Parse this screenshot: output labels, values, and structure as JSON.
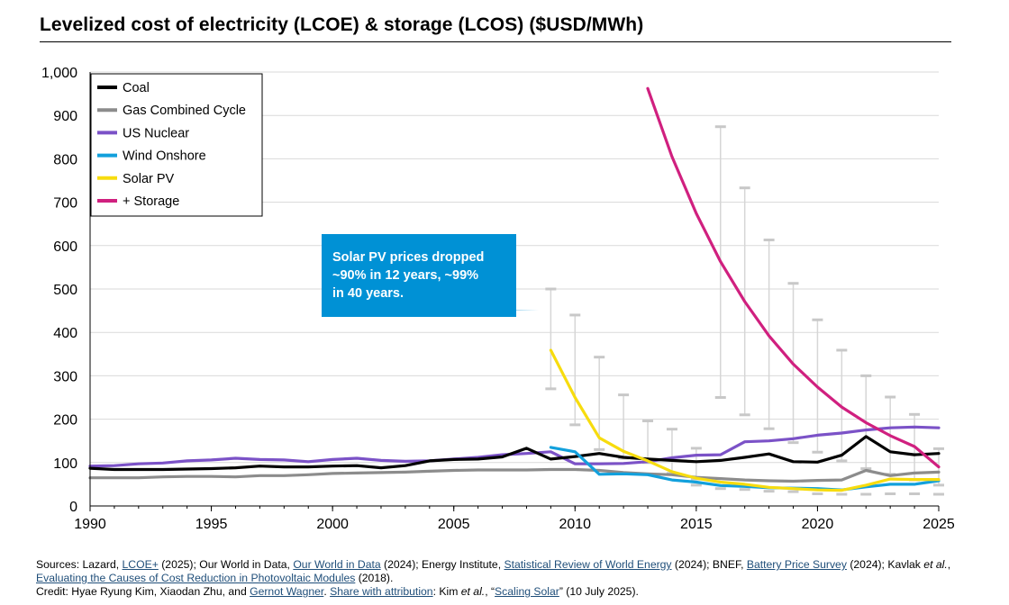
{
  "title": "Levelized cost of electricity (LCOE) & storage (LCOS) ($USD/MWh)",
  "callout": {
    "lines": [
      "Solar PV prices dropped",
      "~90% in 12 years, ~99%",
      "in 40 years."
    ]
  },
  "footer": {
    "sources": [
      {
        "text": "Sources: Lazard, "
      },
      {
        "text": "LCOE+",
        "link": true
      },
      {
        "text": " (2025); Our World in Data, "
      },
      {
        "text": "Our World in Data",
        "link": true
      },
      {
        "text": " (2024); Energy Institute, "
      },
      {
        "text": "Statistical Review of World Energy",
        "link": true
      },
      {
        "text": " (2024); BNEF, "
      },
      {
        "text": "Battery Price Survey",
        "link": true
      },
      {
        "text": " (2024); Kavlak "
      },
      {
        "text": "et al.",
        "italic": true
      },
      {
        "text": ","
      }
    ],
    "sources_line2": [
      {
        "text": "Evaluating the Causes of Cost Reduction in Photovoltaic Modules",
        "link": true
      },
      {
        "text": " (2018)."
      }
    ],
    "credit": [
      {
        "text": "Credit: Hyae Ryung Kim, Xiaodan Zhu, and "
      },
      {
        "text": "Gernot Wagner",
        "link": true
      },
      {
        "text": ". "
      },
      {
        "text": "Share with attribution",
        "link": true
      },
      {
        "text": ": Kim "
      },
      {
        "text": "et al.",
        "italic": true
      },
      {
        "text": ", “"
      },
      {
        "text": "Scaling Solar",
        "link": true
      },
      {
        "text": "” (10 July 2025)."
      }
    ]
  },
  "chart_data": {
    "type": "line",
    "title": "Levelized cost of electricity (LCOE) & storage (LCOS) ($USD/MWh)",
    "xlabel": "",
    "ylabel": "",
    "xlim": [
      1990,
      2025
    ],
    "ylim": [
      0,
      1000
    ],
    "xticks": [
      1990,
      1995,
      2000,
      2005,
      2010,
      2015,
      2020,
      2025
    ],
    "yticks": [
      0,
      100,
      200,
      300,
      400,
      500,
      600,
      700,
      800,
      900,
      1000
    ],
    "ytick_labels": [
      "0",
      "100",
      "200",
      "300",
      "400",
      "500",
      "600",
      "700",
      "800",
      "900",
      "1,000"
    ],
    "legend_position": "top-left",
    "series": [
      {
        "name": "Gas Combined Cycle",
        "color": "#8c8c8c",
        "x": [
          1990,
          1991,
          1992,
          1993,
          1994,
          1995,
          1996,
          1997,
          1998,
          1999,
          2000,
          2001,
          2002,
          2003,
          2004,
          2005,
          2006,
          2007,
          2008,
          2009,
          2010,
          2011,
          2012,
          2013,
          2014,
          2015,
          2016,
          2017,
          2018,
          2019,
          2020,
          2021,
          2022,
          2023,
          2024,
          2025
        ],
        "y": [
          65,
          65,
          65,
          67,
          68,
          68,
          67,
          70,
          70,
          72,
          75,
          76,
          77,
          78,
          80,
          82,
          83,
          83,
          83,
          84,
          84,
          82,
          77,
          74,
          72,
          66,
          63,
          60,
          58,
          57,
          59,
          60,
          82,
          70,
          76,
          78
        ]
      },
      {
        "name": "US Nuclear",
        "color": "#7b52c7",
        "x": [
          1990,
          1991,
          1992,
          1993,
          1994,
          1995,
          1996,
          1997,
          1998,
          1999,
          2000,
          2001,
          2002,
          2003,
          2004,
          2005,
          2006,
          2007,
          2008,
          2009,
          2010,
          2011,
          2012,
          2013,
          2014,
          2015,
          2016,
          2017,
          2018,
          2019,
          2020,
          2021,
          2022,
          2023,
          2024,
          2025
        ],
        "y": [
          92,
          93,
          97,
          99,
          104,
          106,
          110,
          107,
          106,
          102,
          107,
          110,
          105,
          103,
          104,
          108,
          112,
          118,
          121,
          125,
          97,
          97,
          98,
          102,
          111,
          117,
          118,
          148,
          150,
          155,
          163,
          168,
          175,
          180,
          182,
          180
        ]
      },
      {
        "name": "Coal",
        "color": "#000000",
        "x": [
          1990,
          1991,
          1992,
          1993,
          1994,
          1995,
          1996,
          1997,
          1998,
          1999,
          2000,
          2001,
          2002,
          2003,
          2004,
          2005,
          2006,
          2007,
          2008,
          2009,
          2010,
          2011,
          2012,
          2013,
          2014,
          2015,
          2016,
          2017,
          2018,
          2019,
          2020,
          2021,
          2022,
          2023,
          2024,
          2025
        ],
        "y": [
          87,
          84,
          84,
          84,
          85,
          86,
          88,
          92,
          90,
          90,
          92,
          93,
          88,
          93,
          104,
          107,
          108,
          113,
          133,
          108,
          114,
          121,
          112,
          108,
          105,
          102,
          105,
          112,
          120,
          102,
          101,
          117,
          160,
          125,
          118,
          121
        ]
      },
      {
        "name": "Wind Onshore",
        "color": "#12a0dc",
        "x": [
          2009,
          2010,
          2011,
          2012,
          2013,
          2014,
          2015,
          2016,
          2017,
          2018,
          2019,
          2020,
          2021,
          2022,
          2023,
          2024,
          2025
        ],
        "y": [
          135,
          125,
          73,
          74,
          72,
          60,
          55,
          47,
          45,
          42,
          41,
          40,
          37,
          44,
          50,
          50,
          58
        ]
      },
      {
        "name": "Solar PV",
        "color": "#f7dc0e",
        "x": [
          2009,
          2010,
          2011,
          2012,
          2013,
          2014,
          2015,
          2016,
          2017,
          2018,
          2019,
          2020,
          2021,
          2022,
          2023,
          2024,
          2025
        ],
        "y": [
          359,
          250,
          157,
          126,
          104,
          79,
          64,
          55,
          50,
          43,
          40,
          37,
          36,
          48,
          62,
          61,
          61
        ]
      },
      {
        "name": "+ Storage",
        "color": "#d0207f",
        "x": [
          2013,
          2014,
          2015,
          2016,
          2017,
          2018,
          2019,
          2020,
          2021,
          2022,
          2023,
          2024,
          2025
        ],
        "y": [
          962,
          805,
          674,
          563,
          471,
          392,
          327,
          274,
          228,
          192,
          162,
          137,
          90
        ]
      }
    ],
    "range_bars": [
      {
        "x": 2009,
        "low": 270,
        "high": 500
      },
      {
        "x": 2010,
        "low": 187,
        "high": 440
      },
      {
        "x": 2011,
        "low": 130,
        "high": 343
      },
      {
        "x": 2012,
        "low": 110,
        "high": 256
      },
      {
        "x": 2013,
        "low": 100,
        "high": 196
      },
      {
        "x": 2014,
        "low": 75,
        "high": 177
      },
      {
        "x": 2015,
        "low": 62,
        "high": 133
      },
      {
        "x": 2016,
        "low": 250,
        "high": 874
      },
      {
        "x": 2017,
        "low": 210,
        "high": 733
      },
      {
        "x": 2018,
        "low": 178,
        "high": 613
      },
      {
        "x": 2019,
        "low": 146,
        "high": 513
      },
      {
        "x": 2020,
        "low": 124,
        "high": 429
      },
      {
        "x": 2021,
        "low": 104,
        "high": 359
      },
      {
        "x": 2022,
        "low": 86,
        "high": 300
      },
      {
        "x": 2023,
        "low": 73,
        "high": 251
      },
      {
        "x": 2024,
        "low": 60,
        "high": 211
      },
      {
        "x": 2025,
        "low": 48,
        "high": 132
      }
    ],
    "range_caps_low": [
      {
        "x": 2015,
        "y": 48
      },
      {
        "x": 2016,
        "y": 40
      },
      {
        "x": 2017,
        "y": 38
      },
      {
        "x": 2018,
        "y": 34
      },
      {
        "x": 2019,
        "y": 33
      },
      {
        "x": 2020,
        "y": 28
      },
      {
        "x": 2021,
        "y": 27
      },
      {
        "x": 2022,
        "y": 27
      },
      {
        "x": 2023,
        "y": 28
      },
      {
        "x": 2024,
        "y": 28
      },
      {
        "x": 2025,
        "y": 27
      }
    ]
  }
}
